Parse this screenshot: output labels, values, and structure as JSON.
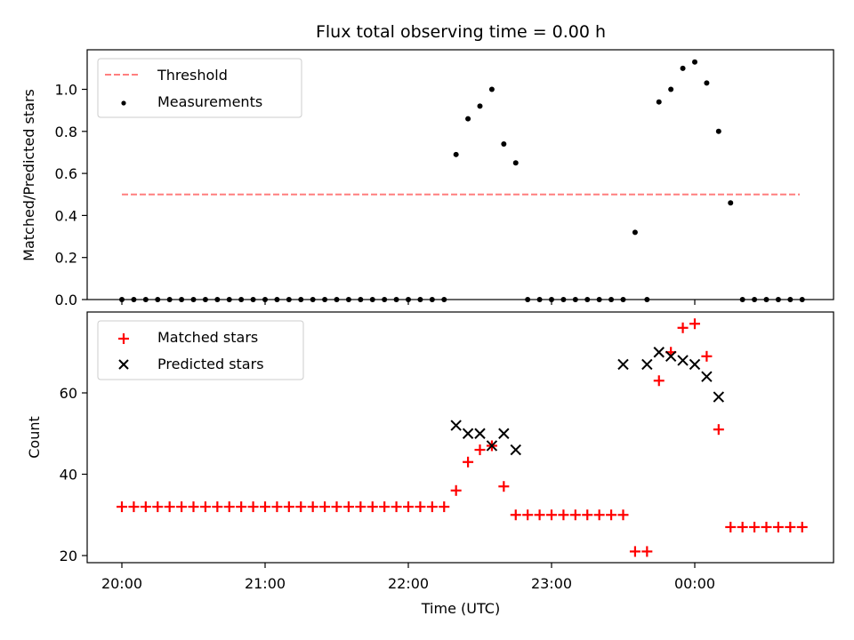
{
  "chart_data": [
    {
      "type": "scatter",
      "title": "Flux total observing time = 0.00 h",
      "ylabel": "Matched/Predicted stars",
      "xlabel": "",
      "xlim": [
        "19:46",
        "00:59"
      ],
      "ylim": [
        0,
        1.19
      ],
      "x_ticks": [
        "20:00",
        "21:00",
        "22:00",
        "23:00",
        "00:00"
      ],
      "y_ticks": [
        "0.0",
        "0.2",
        "0.4",
        "0.6",
        "0.8",
        "1.0"
      ],
      "legend_position": "upper left",
      "series": [
        {
          "name": "Threshold",
          "kind": "dashed-line",
          "color": "#ff7f7f",
          "x": [
            "20:00",
            "00:44"
          ],
          "y": [
            0.5,
            0.5
          ]
        },
        {
          "name": "Measurements",
          "kind": "dot",
          "color": "#000000",
          "x": [
            "20:00",
            "20:05",
            "20:10",
            "20:15",
            "20:20",
            "20:25",
            "20:30",
            "20:35",
            "20:40",
            "20:45",
            "20:50",
            "20:55",
            "21:00",
            "21:05",
            "21:10",
            "21:15",
            "21:20",
            "21:25",
            "21:30",
            "21:35",
            "21:40",
            "21:45",
            "21:50",
            "21:55",
            "22:00",
            "22:05",
            "22:10",
            "22:15",
            "22:20",
            "22:25",
            "22:30",
            "22:35",
            "22:40",
            "22:45",
            "22:50",
            "22:55",
            "23:00",
            "23:05",
            "23:10",
            "23:15",
            "23:20",
            "23:25",
            "23:30",
            "23:35",
            "23:40",
            "23:45",
            "23:50",
            "23:55",
            "00:00",
            "00:05",
            "00:10",
            "00:15",
            "00:20",
            "00:25",
            "00:30",
            "00:35",
            "00:40",
            "00:45"
          ],
          "y": [
            0,
            0,
            0,
            0,
            0,
            0,
            0,
            0,
            0,
            0,
            0,
            0,
            0,
            0,
            0,
            0,
            0,
            0,
            0,
            0,
            0,
            0,
            0,
            0,
            0,
            0,
            0,
            0,
            0.69,
            0.86,
            0.92,
            1.0,
            0.74,
            0.65,
            0,
            0,
            0,
            0,
            0,
            0,
            0,
            0,
            0,
            0.32,
            0,
            0.94,
            1.0,
            1.1,
            1.13,
            1.03,
            0.8,
            0.46,
            0,
            0,
            0,
            0,
            0,
            0
          ]
        }
      ]
    },
    {
      "type": "scatter",
      "title": "",
      "ylabel": "Count",
      "xlabel": "Time (UTC)",
      "xlim": [
        "19:46",
        "00:59"
      ],
      "ylim": [
        18,
        79
      ],
      "x_ticks": [
        "20:00",
        "21:00",
        "22:00",
        "23:00",
        "00:00"
      ],
      "y_ticks": [
        "20",
        "40",
        "60"
      ],
      "legend_position": "upper left",
      "series": [
        {
          "name": "Matched stars",
          "kind": "plus",
          "color": "#ff0000",
          "x": [
            "20:00",
            "20:05",
            "20:10",
            "20:15",
            "20:20",
            "20:25",
            "20:30",
            "20:35",
            "20:40",
            "20:45",
            "20:50",
            "20:55",
            "21:00",
            "21:05",
            "21:10",
            "21:15",
            "21:20",
            "21:25",
            "21:30",
            "21:35",
            "21:40",
            "21:45",
            "21:50",
            "21:55",
            "22:00",
            "22:05",
            "22:10",
            "22:15",
            "22:20",
            "22:25",
            "22:30",
            "22:35",
            "22:40",
            "22:45",
            "22:50",
            "22:55",
            "23:00",
            "23:05",
            "23:10",
            "23:15",
            "23:20",
            "23:25",
            "23:30",
            "23:35",
            "23:40",
            "23:45",
            "23:50",
            "23:55",
            "00:00",
            "00:05",
            "00:10",
            "00:15",
            "00:20",
            "00:25",
            "00:30",
            "00:35",
            "00:40",
            "00:45"
          ],
          "y": [
            32,
            32,
            32,
            32,
            32,
            32,
            32,
            32,
            32,
            32,
            32,
            32,
            32,
            32,
            32,
            32,
            32,
            32,
            32,
            32,
            32,
            32,
            32,
            32,
            32,
            32,
            32,
            32,
            36,
            43,
            46,
            47,
            37,
            30,
            30,
            30,
            30,
            30,
            30,
            30,
            30,
            30,
            30,
            21,
            21,
            63,
            70,
            76,
            77,
            69,
            51,
            27,
            27,
            27,
            27,
            27,
            27,
            27
          ]
        },
        {
          "name": "Predicted stars",
          "kind": "x",
          "color": "#000000",
          "x": [
            "22:20",
            "22:25",
            "22:30",
            "22:35",
            "22:40",
            "22:45",
            "23:30",
            "23:40",
            "23:45",
            "23:50",
            "23:55",
            "00:00",
            "00:05",
            "00:10"
          ],
          "y": [
            52,
            50,
            50,
            47,
            50,
            46,
            67,
            67,
            70,
            69,
            68,
            67,
            64,
            59
          ]
        }
      ]
    }
  ]
}
